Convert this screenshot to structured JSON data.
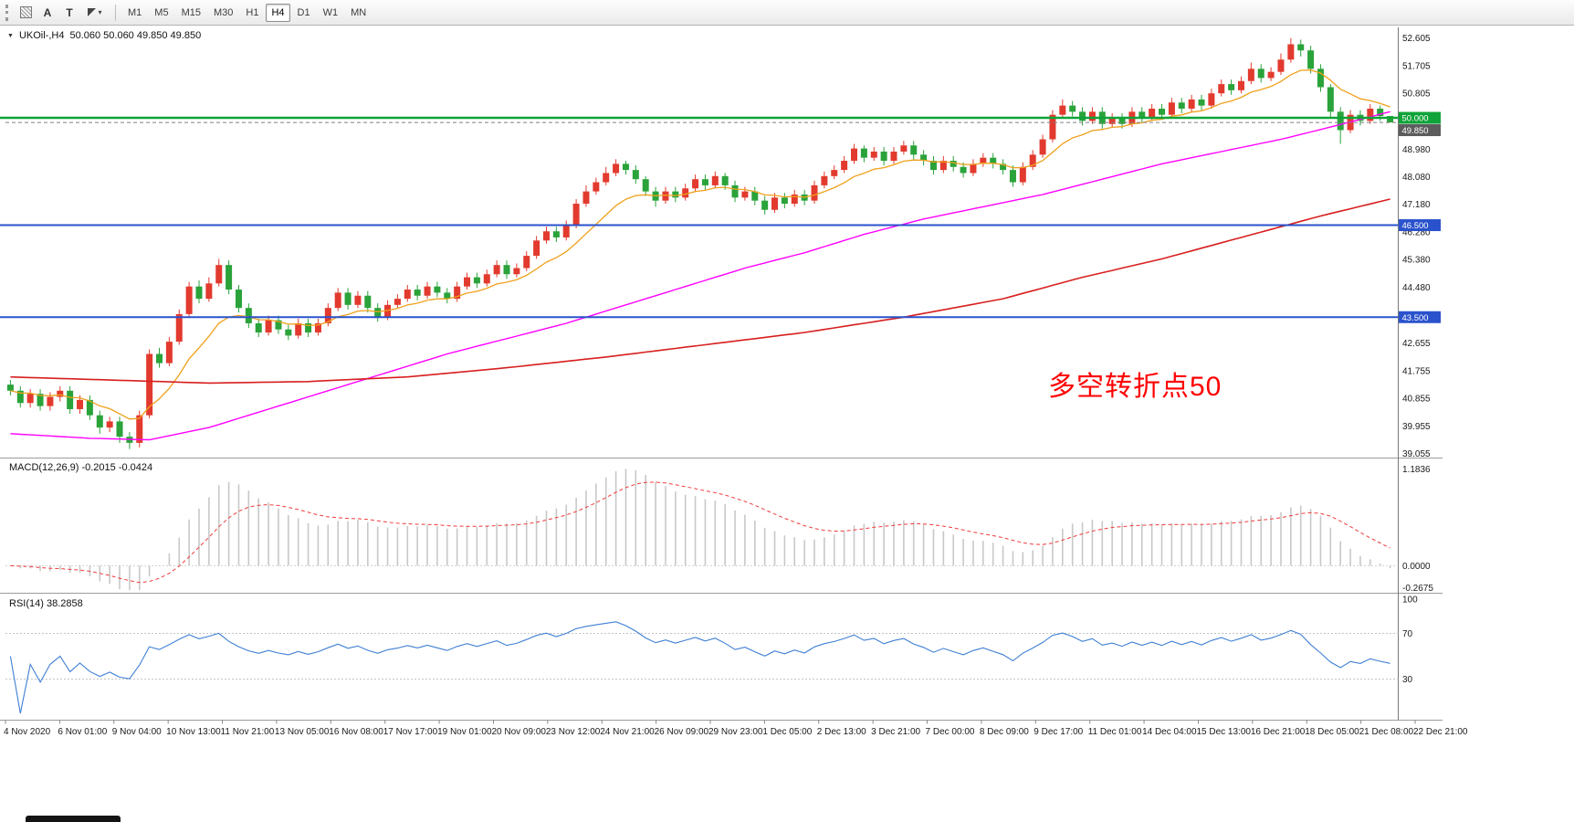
{
  "colors": {
    "up": "#e23a2e",
    "down": "#2aa33a",
    "ma_fast": "#f0a11c",
    "ma_mid": "#ff00ff",
    "ma_slow": "#d81f1f",
    "hline_green": "#0fa339",
    "hline_blue": "#2a52cc",
    "macd_hist": "#c8c8c8",
    "macd_signal": "#f03c3c",
    "rsi": "#3e7fd4",
    "current_tag": "#5c5c5c",
    "annotation": "#ff0000",
    "axis_text": "#1a1a1a"
  },
  "icons": {
    "expand_arrow": "▼",
    "dropdown_caret": "▾"
  },
  "toolbar": {
    "arrow_tool_label": "A",
    "text_tool_label": "T",
    "timeframes": [
      "M1",
      "M5",
      "M15",
      "M30",
      "H1",
      "H4",
      "D1",
      "W1",
      "MN"
    ],
    "active_timeframe": "H4"
  },
  "chart_header": {
    "symbol_period": "UKOil-,H4",
    "ohlc": "50.060 50.060 49.850 49.850"
  },
  "annotation": {
    "text": "多空转折点50"
  },
  "chart_data": {
    "type": "candlestick",
    "symbol": "UKOil-",
    "timeframe": "H4",
    "ylim": [
      38.95,
      52.95
    ],
    "price_axis_labels": [
      52.605,
      51.705,
      50.805,
      48.98,
      48.08,
      47.18,
      46.28,
      45.38,
      44.48,
      42.655,
      41.755,
      40.855,
      39.955,
      39.055
    ],
    "hlines": [
      {
        "price": 50.0,
        "tag": "50.000",
        "color": "#0fa339",
        "width": 2.5
      },
      {
        "price": 46.5,
        "tag": "46.500",
        "color": "#2a52cc",
        "width": 2
      },
      {
        "price": 43.5,
        "tag": "43.500",
        "color": "#2a52cc",
        "width": 2
      }
    ],
    "current_price": {
      "value": 49.85,
      "tag": "49.850"
    },
    "candles": [
      [
        41.3,
        41.45,
        40.95,
        41.1
      ],
      [
        41.1,
        41.25,
        40.55,
        40.7
      ],
      [
        40.7,
        41.15,
        40.55,
        41.0
      ],
      [
        41.0,
        41.15,
        40.45,
        40.6
      ],
      [
        40.6,
        41.05,
        40.45,
        40.9
      ],
      [
        40.9,
        41.25,
        40.75,
        41.1
      ],
      [
        41.1,
        41.25,
        40.35,
        40.5
      ],
      [
        40.5,
        40.95,
        40.35,
        40.8
      ],
      [
        40.8,
        40.95,
        40.15,
        40.3
      ],
      [
        40.3,
        40.45,
        39.7,
        39.9
      ],
      [
        39.9,
        40.25,
        39.75,
        40.1
      ],
      [
        40.1,
        40.25,
        39.4,
        39.6
      ],
      [
        39.6,
        39.75,
        39.2,
        39.4
      ],
      [
        39.4,
        40.45,
        39.25,
        40.3
      ],
      [
        40.3,
        42.45,
        40.2,
        42.3
      ],
      [
        42.3,
        42.5,
        41.85,
        42.0
      ],
      [
        42.0,
        42.85,
        41.9,
        42.7
      ],
      [
        42.7,
        43.75,
        42.6,
        43.6
      ],
      [
        43.6,
        44.65,
        43.5,
        44.5
      ],
      [
        44.5,
        44.7,
        43.95,
        44.1
      ],
      [
        44.1,
        44.8,
        44.0,
        44.6
      ],
      [
        44.6,
        45.4,
        44.5,
        45.2
      ],
      [
        45.2,
        45.35,
        44.25,
        44.4
      ],
      [
        44.4,
        44.55,
        43.65,
        43.8
      ],
      [
        43.8,
        43.95,
        43.15,
        43.3
      ],
      [
        43.3,
        43.45,
        42.85,
        43.0
      ],
      [
        43.0,
        43.55,
        42.9,
        43.4
      ],
      [
        43.4,
        43.55,
        42.95,
        43.1
      ],
      [
        43.1,
        43.25,
        42.75,
        42.9
      ],
      [
        42.9,
        43.45,
        42.8,
        43.3
      ],
      [
        43.3,
        43.45,
        42.85,
        43.0
      ],
      [
        43.0,
        43.45,
        42.9,
        43.3
      ],
      [
        43.3,
        43.95,
        43.2,
        43.8
      ],
      [
        43.8,
        44.45,
        43.7,
        44.3
      ],
      [
        44.3,
        44.45,
        43.75,
        43.9
      ],
      [
        43.9,
        44.35,
        43.8,
        44.2
      ],
      [
        44.2,
        44.35,
        43.65,
        43.8
      ],
      [
        43.8,
        43.95,
        43.35,
        43.5
      ],
      [
        43.5,
        44.05,
        43.4,
        43.9
      ],
      [
        43.9,
        44.25,
        43.8,
        44.1
      ],
      [
        44.1,
        44.55,
        44.0,
        44.4
      ],
      [
        44.4,
        44.55,
        44.05,
        44.2
      ],
      [
        44.2,
        44.65,
        44.1,
        44.5
      ],
      [
        44.5,
        44.65,
        44.15,
        44.3
      ],
      [
        44.3,
        44.45,
        43.95,
        44.1
      ],
      [
        44.1,
        44.65,
        44.0,
        44.5
      ],
      [
        44.5,
        44.95,
        44.4,
        44.8
      ],
      [
        44.8,
        44.95,
        44.45,
        44.6
      ],
      [
        44.6,
        45.05,
        44.5,
        44.9
      ],
      [
        44.9,
        45.35,
        44.8,
        45.2
      ],
      [
        45.2,
        45.35,
        44.75,
        44.9
      ],
      [
        44.9,
        45.25,
        44.8,
        45.1
      ],
      [
        45.1,
        45.65,
        45.0,
        45.5
      ],
      [
        45.5,
        46.15,
        45.4,
        46.0
      ],
      [
        46.0,
        46.45,
        45.9,
        46.3
      ],
      [
        46.3,
        46.45,
        45.95,
        46.1
      ],
      [
        46.1,
        46.65,
        46.0,
        46.5
      ],
      [
        46.5,
        47.35,
        46.4,
        47.2
      ],
      [
        47.2,
        47.8,
        47.1,
        47.6
      ],
      [
        47.6,
        48.05,
        47.5,
        47.9
      ],
      [
        47.9,
        48.4,
        47.8,
        48.2
      ],
      [
        48.2,
        48.65,
        48.1,
        48.5
      ],
      [
        48.5,
        48.6,
        48.15,
        48.3
      ],
      [
        48.3,
        48.45,
        47.85,
        48.0
      ],
      [
        48.0,
        48.1,
        47.45,
        47.6
      ],
      [
        47.6,
        47.75,
        47.1,
        47.3
      ],
      [
        47.3,
        47.75,
        47.2,
        47.6
      ],
      [
        47.6,
        47.75,
        47.25,
        47.4
      ],
      [
        47.4,
        47.85,
        47.3,
        47.7
      ],
      [
        47.7,
        48.15,
        47.6,
        48.0
      ],
      [
        48.0,
        48.15,
        47.65,
        47.8
      ],
      [
        47.8,
        48.25,
        47.7,
        48.1
      ],
      [
        48.1,
        48.2,
        47.65,
        47.8
      ],
      [
        47.8,
        47.95,
        47.25,
        47.4
      ],
      [
        47.4,
        47.75,
        47.3,
        47.6
      ],
      [
        47.6,
        47.75,
        47.15,
        47.3
      ],
      [
        47.3,
        47.45,
        46.85,
        47.0
      ],
      [
        47.0,
        47.55,
        46.9,
        47.4
      ],
      [
        47.4,
        47.55,
        47.05,
        47.2
      ],
      [
        47.2,
        47.65,
        47.1,
        47.5
      ],
      [
        47.5,
        47.65,
        47.15,
        47.3
      ],
      [
        47.3,
        47.95,
        47.2,
        47.8
      ],
      [
        47.8,
        48.25,
        47.7,
        48.1
      ],
      [
        48.1,
        48.45,
        48.0,
        48.3
      ],
      [
        48.3,
        48.75,
        48.2,
        48.6
      ],
      [
        48.6,
        49.15,
        48.5,
        49.0
      ],
      [
        49.0,
        49.1,
        48.55,
        48.7
      ],
      [
        48.7,
        49.05,
        48.6,
        48.9
      ],
      [
        48.9,
        49.05,
        48.45,
        48.6
      ],
      [
        48.6,
        49.05,
        48.5,
        48.9
      ],
      [
        48.9,
        49.25,
        48.8,
        49.1
      ],
      [
        49.1,
        49.25,
        48.65,
        48.8
      ],
      [
        48.8,
        48.95,
        48.45,
        48.6
      ],
      [
        48.6,
        48.75,
        48.15,
        48.3
      ],
      [
        48.3,
        48.75,
        48.2,
        48.6
      ],
      [
        48.6,
        48.75,
        48.25,
        48.4
      ],
      [
        48.4,
        48.55,
        48.05,
        48.2
      ],
      [
        48.2,
        48.65,
        48.1,
        48.5
      ],
      [
        48.5,
        48.85,
        48.4,
        48.7
      ],
      [
        48.7,
        48.85,
        48.35,
        48.5
      ],
      [
        48.5,
        48.65,
        48.15,
        48.3
      ],
      [
        48.3,
        48.45,
        47.75,
        47.9
      ],
      [
        47.9,
        48.55,
        47.8,
        48.4
      ],
      [
        48.4,
        48.95,
        48.3,
        48.8
      ],
      [
        48.8,
        49.45,
        48.7,
        49.3
      ],
      [
        49.3,
        50.25,
        49.2,
        50.1
      ],
      [
        50.1,
        50.6,
        50.0,
        50.4
      ],
      [
        50.4,
        50.55,
        50.05,
        50.2
      ],
      [
        50.2,
        50.35,
        49.75,
        49.9
      ],
      [
        49.9,
        50.35,
        49.8,
        50.2
      ],
      [
        50.2,
        50.35,
        49.65,
        49.8
      ],
      [
        49.8,
        50.15,
        49.7,
        50.0
      ],
      [
        50.0,
        50.15,
        49.65,
        49.8
      ],
      [
        49.8,
        50.35,
        49.7,
        50.2
      ],
      [
        50.2,
        50.35,
        49.85,
        50.0
      ],
      [
        50.0,
        50.45,
        49.9,
        50.3
      ],
      [
        50.3,
        50.45,
        49.95,
        50.1
      ],
      [
        50.1,
        50.65,
        50.0,
        50.5
      ],
      [
        50.5,
        50.65,
        50.15,
        50.3
      ],
      [
        50.3,
        50.75,
        50.2,
        50.6
      ],
      [
        50.6,
        50.75,
        50.25,
        50.4
      ],
      [
        50.4,
        50.95,
        50.3,
        50.8
      ],
      [
        50.8,
        51.25,
        50.7,
        51.1
      ],
      [
        51.1,
        51.25,
        50.75,
        50.9
      ],
      [
        50.9,
        51.35,
        50.8,
        51.2
      ],
      [
        51.2,
        51.8,
        51.1,
        51.6
      ],
      [
        51.6,
        51.75,
        51.15,
        51.3
      ],
      [
        51.3,
        51.65,
        51.2,
        51.5
      ],
      [
        51.5,
        52.1,
        51.4,
        51.9
      ],
      [
        51.9,
        52.6,
        51.8,
        52.4
      ],
      [
        52.4,
        52.55,
        52.0,
        52.2
      ],
      [
        52.2,
        52.35,
        51.45,
        51.6
      ],
      [
        51.6,
        51.75,
        50.85,
        51.0
      ],
      [
        51.0,
        51.1,
        50.0,
        50.2
      ],
      [
        50.2,
        50.35,
        49.15,
        49.6
      ],
      [
        49.6,
        50.25,
        49.5,
        50.1
      ],
      [
        50.1,
        50.25,
        49.75,
        49.9
      ],
      [
        49.9,
        50.45,
        49.8,
        50.3
      ],
      [
        50.3,
        50.4,
        49.9,
        50.06
      ],
      [
        50.06,
        50.06,
        49.85,
        49.85
      ]
    ],
    "ma_fast_period": 10,
    "ma_mid_anchors": [
      [
        0,
        39.7
      ],
      [
        8,
        39.55
      ],
      [
        14,
        39.5
      ],
      [
        20,
        39.9
      ],
      [
        26,
        40.5
      ],
      [
        32,
        41.1
      ],
      [
        38,
        41.7
      ],
      [
        44,
        42.3
      ],
      [
        50,
        42.8
      ],
      [
        56,
        43.3
      ],
      [
        62,
        43.9
      ],
      [
        68,
        44.5
      ],
      [
        74,
        45.1
      ],
      [
        80,
        45.6
      ],
      [
        86,
        46.2
      ],
      [
        92,
        46.7
      ],
      [
        98,
        47.1
      ],
      [
        104,
        47.5
      ],
      [
        110,
        48.0
      ],
      [
        116,
        48.5
      ],
      [
        122,
        48.9
      ],
      [
        128,
        49.3
      ],
      [
        133,
        49.7
      ],
      [
        139,
        50.2
      ]
    ],
    "ma_slow_anchors": [
      [
        0,
        41.55
      ],
      [
        10,
        41.45
      ],
      [
        20,
        41.35
      ],
      [
        30,
        41.4
      ],
      [
        40,
        41.55
      ],
      [
        50,
        41.85
      ],
      [
        60,
        42.2
      ],
      [
        70,
        42.6
      ],
      [
        80,
        43.0
      ],
      [
        90,
        43.5
      ],
      [
        100,
        44.1
      ],
      [
        108,
        44.8
      ],
      [
        116,
        45.4
      ],
      [
        124,
        46.1
      ],
      [
        132,
        46.8
      ],
      [
        139,
        47.35
      ]
    ],
    "macd": {
      "label": "MACD(12,26,9) -0.2015 -0.0424",
      "params": [
        12,
        26,
        9
      ],
      "value_main": -0.2015,
      "value_signal": -0.0424,
      "axis_labels": [
        1.1836,
        0,
        -0.2675
      ],
      "ylim": [
        -0.32,
        1.3
      ]
    },
    "rsi": {
      "label": "RSI(14) 38.2858",
      "period": 14,
      "value": 38.2858,
      "axis_labels": [
        100,
        70,
        30
      ],
      "levels": [
        70,
        30
      ]
    },
    "time_axis_labels": [
      "4 Nov 2020",
      "6 Nov 01:00",
      "9 Nov 04:00",
      "10 Nov 13:00",
      "11 Nov 21:00",
      "13 Nov 05:00",
      "16 Nov 08:00",
      "17 Nov 17:00",
      "19 Nov 01:00",
      "20 Nov 09:00",
      "23 Nov 12:00",
      "24 Nov 21:00",
      "26 Nov 09:00",
      "29 Nov 23:00",
      "1 Dec 05:00",
      "2 Dec 13:00",
      "3 Dec 21:00",
      "7 Dec 00:00",
      "8 Dec 09:00",
      "9 Dec 17:00",
      "11 Dec 01:00",
      "14 Dec 04:00",
      "15 Dec 13:00",
      "16 Dec 21:00",
      "18 Dec 05:00",
      "21 Dec 08:00",
      "22 Dec 21:00"
    ]
  }
}
